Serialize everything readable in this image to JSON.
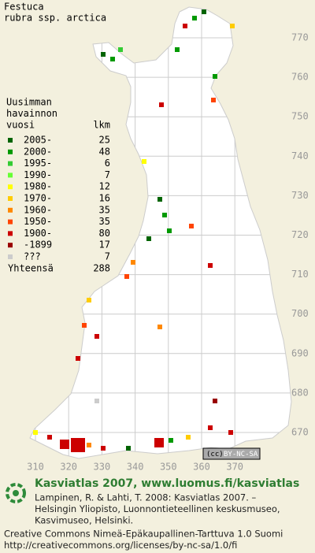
{
  "title": [
    "Festuca",
    "rubra ssp. arctica"
  ],
  "legend": {
    "heading": [
      "Uusimman",
      "havainnon",
      "vuosi"
    ],
    "count_heading": "lkm",
    "rows": [
      {
        "label": "2005-",
        "count": 25,
        "color": "#006400"
      },
      {
        "label": "2000-",
        "count": 48,
        "color": "#009900"
      },
      {
        "label": "1995-",
        "count": 6,
        "color": "#33cc33"
      },
      {
        "label": "1990-",
        "count": 7,
        "color": "#66ff33"
      },
      {
        "label": "1980-",
        "count": 12,
        "color": "#ffff00"
      },
      {
        "label": "1970-",
        "count": 16,
        "color": "#ffcc00"
      },
      {
        "label": "1960-",
        "count": 35,
        "color": "#ff8800"
      },
      {
        "label": "1950-",
        "count": 35,
        "color": "#ff4400"
      },
      {
        "label": "1900-",
        "count": 80,
        "color": "#cc0000"
      },
      {
        "label": "-1899",
        "count": 17,
        "color": "#990000"
      },
      {
        "label": "???",
        "count": 7,
        "color": "#cccccc"
      }
    ],
    "total_label": "Yhteensä",
    "total": 288
  },
  "map": {
    "xticks": [
      310,
      320,
      330,
      340,
      350,
      360,
      370
    ],
    "yticks": [
      670,
      680,
      690,
      700,
      710,
      720,
      730,
      740,
      750,
      760,
      770
    ]
  },
  "badge": {
    "cc": "(cc)",
    "license": "BY-NC-SA"
  },
  "footer": {
    "brand": "Kasviatlas 2007, www.luomus.fi/kasviatlas",
    "citation": [
      "Lampinen, R. & Lahti, T. 2008: Kasviatlas 2007. –",
      "Helsingin Yliopisto, Luonnontieteellinen keskusmuseo,",
      "Kasvimuseo, Helsinki."
    ],
    "license": [
      "Creative Commons Nimeä-Epäkaupallinen-Tarttuva 1.0 Suomi",
      "http://creativecommons.org/licenses/by-nc-sa/1.0/fi"
    ]
  }
}
